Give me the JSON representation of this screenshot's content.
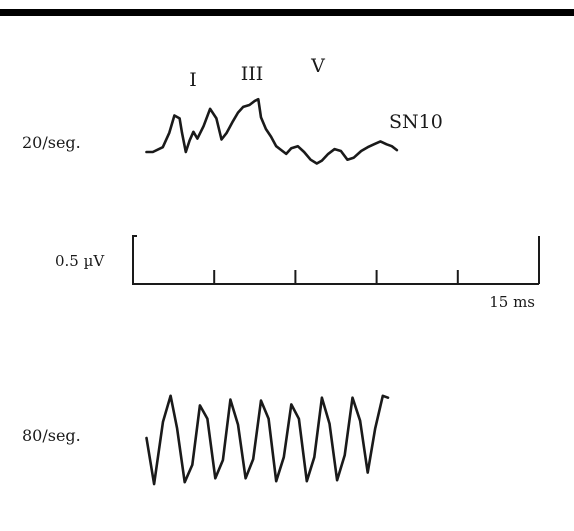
{
  "chart_data": {
    "type": "line",
    "title": "",
    "line_color": "#1a1a1a",
    "background": "#ffffff",
    "panels": [
      {
        "name": "20-per-second",
        "rate_label": "20/seg.",
        "peak_labels": [
          "I",
          "III",
          "V",
          "SN10"
        ],
        "waveform": [
          [
            0.0,
            0.0
          ],
          [
            0.23,
            0.0
          ],
          [
            0.6,
            0.05
          ],
          [
            0.84,
            0.2
          ],
          [
            1.03,
            0.38
          ],
          [
            1.22,
            0.35
          ],
          [
            1.31,
            0.2
          ],
          [
            1.45,
            0.0
          ],
          [
            1.59,
            0.12
          ],
          [
            1.73,
            0.21
          ],
          [
            1.88,
            0.14
          ],
          [
            2.11,
            0.27
          ],
          [
            2.35,
            0.45
          ],
          [
            2.58,
            0.35
          ],
          [
            2.77,
            0.13
          ],
          [
            2.96,
            0.2
          ],
          [
            3.19,
            0.32
          ],
          [
            3.38,
            0.41
          ],
          [
            3.57,
            0.47
          ],
          [
            3.8,
            0.49
          ],
          [
            3.99,
            0.53
          ],
          [
            4.13,
            0.55
          ],
          [
            4.23,
            0.36
          ],
          [
            4.41,
            0.24
          ],
          [
            4.6,
            0.16
          ],
          [
            4.79,
            0.06
          ],
          [
            4.98,
            0.02
          ],
          [
            5.16,
            -0.02
          ],
          [
            5.35,
            0.04
          ],
          [
            5.59,
            0.06
          ],
          [
            5.82,
            0.0
          ],
          [
            6.06,
            -0.08
          ],
          [
            6.29,
            -0.12
          ],
          [
            6.48,
            -0.09
          ],
          [
            6.71,
            -0.02
          ],
          [
            6.95,
            0.03
          ],
          [
            7.18,
            0.01
          ],
          [
            7.42,
            -0.08
          ],
          [
            7.65,
            -0.06
          ],
          [
            7.93,
            0.01
          ],
          [
            8.17,
            0.05
          ],
          [
            8.4,
            0.08
          ],
          [
            8.64,
            0.11
          ],
          [
            8.87,
            0.08
          ],
          [
            9.06,
            0.06
          ],
          [
            9.25,
            0.02
          ]
        ]
      },
      {
        "name": "80-per-second",
        "rate_label": "80/seg.",
        "waveform": [
          [
            0.0,
            0.0
          ],
          [
            0.28,
            -0.48
          ],
          [
            0.61,
            0.17
          ],
          [
            0.89,
            0.44
          ],
          [
            1.13,
            0.1
          ],
          [
            1.41,
            -0.46
          ],
          [
            1.69,
            -0.28
          ],
          [
            1.97,
            0.34
          ],
          [
            2.25,
            0.2
          ],
          [
            2.54,
            -0.42
          ],
          [
            2.82,
            -0.23
          ],
          [
            3.1,
            0.4
          ],
          [
            3.38,
            0.14
          ],
          [
            3.66,
            -0.42
          ],
          [
            3.94,
            -0.22
          ],
          [
            4.23,
            0.39
          ],
          [
            4.51,
            0.2
          ],
          [
            4.79,
            -0.45
          ],
          [
            5.07,
            -0.2
          ],
          [
            5.35,
            0.35
          ],
          [
            5.63,
            0.2
          ],
          [
            5.92,
            -0.45
          ],
          [
            6.2,
            -0.2
          ],
          [
            6.48,
            0.42
          ],
          [
            6.76,
            0.15
          ],
          [
            7.04,
            -0.44
          ],
          [
            7.32,
            -0.18
          ],
          [
            7.61,
            0.42
          ],
          [
            7.89,
            0.18
          ],
          [
            8.17,
            -0.36
          ],
          [
            8.45,
            0.1
          ],
          [
            8.73,
            0.44
          ],
          [
            8.92,
            0.42
          ]
        ]
      }
    ],
    "x_axis": {
      "unit": "ms",
      "range": [
        0,
        15
      ],
      "end_label": "15 ms",
      "ticks": [
        0,
        3,
        6,
        9,
        12,
        15
      ]
    },
    "y_scale": {
      "label": "0.5 µV",
      "value": 0.5,
      "unit": "µV"
    }
  }
}
